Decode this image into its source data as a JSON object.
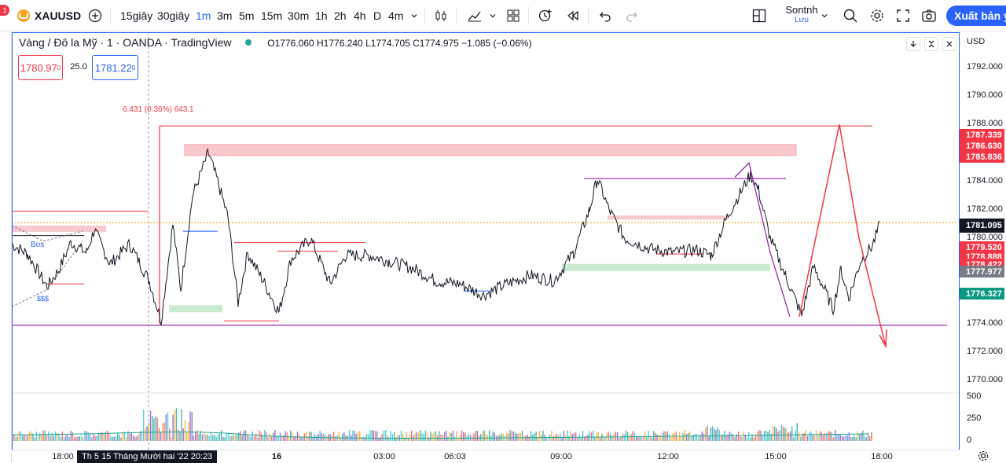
{
  "toolbar": {
    "notification_count": "1",
    "symbol": "XAUUSD",
    "intervals": [
      "15giây",
      "30giây",
      "1m",
      "3m",
      "5m",
      "15m",
      "30m",
      "1h",
      "2h",
      "4h",
      "D",
      "4m"
    ],
    "active_interval": "1m",
    "user_name": "Sontnh",
    "save_label": "Lưu",
    "export_label": "Xuất bản ý t",
    "icons": [
      "add-symbol-icon",
      "chevron-down-icon",
      "candles-icon",
      "indicators-icon",
      "chevron-down-icon",
      "layout-icon",
      "alert-icon",
      "replay-icon",
      "undo-icon",
      "redo-icon",
      "layout-grid-icon",
      "chevron-down-icon",
      "search-icon",
      "gear-icon",
      "fullscreen-icon",
      "camera-icon"
    ]
  },
  "legend": {
    "title": "Vàng / Đô la Mỹ · 1 · OANDA · TradingView",
    "ohlc": "O1776.060 H1776.240 L1774.705 C1774.975 −1.085 (−0.06%)",
    "sell_price": "1780.97",
    "sell_sup": "0",
    "spread": "25.0",
    "buy_price": "1781.22",
    "buy_sup": "0"
  },
  "measure_label": "6.431 (0.36%) 643.1",
  "annotations": {
    "bos": "Bos",
    "sss": "$$$"
  },
  "price_axis": {
    "currency": "USD",
    "ticks": [
      "1792.000",
      "1790.000",
      "1788.000",
      "1784.000",
      "1782.000",
      "1780.000",
      "1774.000",
      "1772.000",
      "1770.000"
    ],
    "volume_ticks": [
      "500",
      "250",
      "0"
    ],
    "labels": [
      {
        "text": "1787.339",
        "color": "#f23645"
      },
      {
        "text": "1786.630",
        "color": "#f23645"
      },
      {
        "text": "1785.836",
        "color": "#f23645"
      },
      {
        "text": "1781.095",
        "color": "#131722"
      },
      {
        "text": "1779.520",
        "color": "#f23645"
      },
      {
        "text": "1778.888",
        "color": "#f23645"
      },
      {
        "text": "1778.422",
        "color": "#f23645"
      },
      {
        "text": "1777.977",
        "color": "#787b86"
      },
      {
        "text": "1776.327",
        "color": "#089981"
      }
    ]
  },
  "time_axis": {
    "ticks": [
      "18:00",
      "16",
      "03:00",
      "06:03",
      "09:00",
      "12:00",
      "15:00",
      "18:00"
    ],
    "cursor": "Th 5 15 Tháng Mười hai '22   20:23"
  },
  "chart_data": {
    "type": "candlestick",
    "title": "Vàng / Đô la Mỹ · 1 · OANDA · TradingView",
    "ylim": [
      1769,
      1793
    ],
    "x_ticks": [
      "18:00",
      "16",
      "03:00",
      "06:03",
      "09:00",
      "12:00",
      "15:00",
      "18:00"
    ],
    "last_price": 1781.095,
    "levels": [
      1788.0,
      1785.8,
      1784.2,
      1781.6,
      1780.5,
      1778.0,
      1774.0
    ],
    "price_path": [
      [
        0,
        1779.6
      ],
      [
        20,
        1778.9
      ],
      [
        45,
        1776.6
      ],
      [
        60,
        1777.8
      ],
      [
        75,
        1779.7
      ],
      [
        95,
        1779.0
      ],
      [
        105,
        1780.6
      ],
      [
        125,
        1778.2
      ],
      [
        150,
        1779.6
      ],
      [
        175,
        1777.0
      ],
      [
        190,
        1774.2
      ],
      [
        205,
        1781.0
      ],
      [
        215,
        1776.4
      ],
      [
        230,
        1783.0
      ],
      [
        250,
        1786.0
      ],
      [
        262,
        1784.0
      ],
      [
        275,
        1781.5
      ],
      [
        288,
        1775.5
      ],
      [
        300,
        1779.0
      ],
      [
        320,
        1777.0
      ],
      [
        340,
        1774.8
      ],
      [
        355,
        1778.5
      ],
      [
        380,
        1780.0
      ],
      [
        405,
        1776.8
      ],
      [
        425,
        1778.8
      ],
      [
        455,
        1778.8
      ],
      [
        480,
        1778.4
      ],
      [
        510,
        1777.9
      ],
      [
        540,
        1777.0
      ],
      [
        570,
        1776.8
      ],
      [
        600,
        1776.0
      ],
      [
        630,
        1776.8
      ],
      [
        660,
        1777.4
      ],
      [
        690,
        1777.0
      ],
      [
        715,
        1779.0
      ],
      [
        735,
        1782.0
      ],
      [
        745,
        1784.2
      ],
      [
        760,
        1782.0
      ],
      [
        780,
        1780.0
      ],
      [
        810,
        1779.3
      ],
      [
        840,
        1779.0
      ],
      [
        870,
        1779.2
      ],
      [
        890,
        1778.8
      ],
      [
        910,
        1781.5
      ],
      [
        925,
        1783.0
      ],
      [
        940,
        1784.5
      ],
      [
        950,
        1783.4
      ],
      [
        965,
        1780.0
      ],
      [
        985,
        1777.3
      ],
      [
        1005,
        1774.6
      ],
      [
        1020,
        1778.0
      ],
      [
        1035,
        1776.3
      ],
      [
        1045,
        1775.0
      ],
      [
        1055,
        1777.8
      ],
      [
        1065,
        1775.8
      ],
      [
        1080,
        1778.4
      ],
      [
        1095,
        1779.5
      ],
      [
        1105,
        1781.0
      ]
    ],
    "volume_max": 500
  },
  "colors": {
    "accent": "#2962ff",
    "up": "#089981",
    "down": "#f23645",
    "supply_zone": "#f8c9cd",
    "demand_zone": "#c8ecd0",
    "purple": "#9c27b0",
    "orange": "#ff9800"
  }
}
